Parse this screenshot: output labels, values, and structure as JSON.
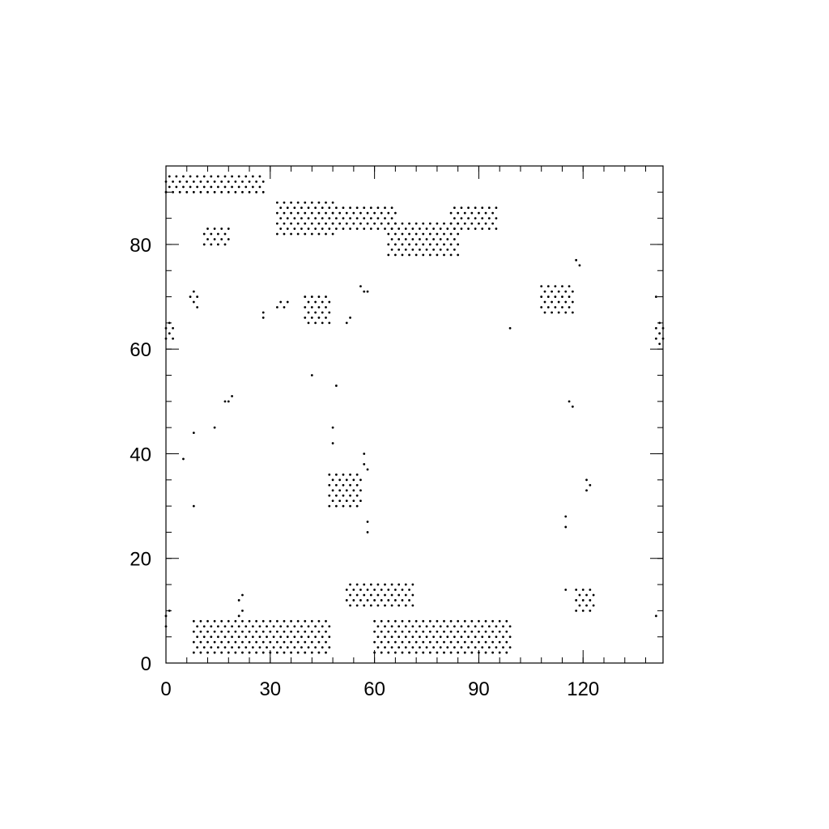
{
  "chart_data": {
    "type": "scatter",
    "title": "",
    "xlabel": "",
    "ylabel": "",
    "xlim": [
      0,
      143
    ],
    "ylim": [
      0,
      95
    ],
    "x_ticks": [
      0,
      30,
      60,
      90,
      120
    ],
    "y_ticks": [
      0,
      20,
      40,
      60,
      80
    ],
    "x_minor_step": 6,
    "y_minor_step": 5,
    "grid": false,
    "marker_color": "#000000",
    "clusters": [
      {
        "x": [
          0,
          28
        ],
        "y": [
          90,
          93
        ]
      },
      {
        "x": [
          32,
          48
        ],
        "y": [
          82,
          88
        ]
      },
      {
        "x": [
          48,
          66
        ],
        "y": [
          83,
          87
        ]
      },
      {
        "x": [
          64,
          84
        ],
        "y": [
          78,
          84
        ]
      },
      {
        "x": [
          82,
          95
        ],
        "y": [
          83,
          87
        ]
      },
      {
        "x": [
          11,
          18
        ],
        "y": [
          80,
          83
        ]
      },
      {
        "x": [
          40,
          47
        ],
        "y": [
          65,
          70
        ]
      },
      {
        "x": [
          108,
          117
        ],
        "y": [
          67,
          72
        ]
      },
      {
        "x": [
          47,
          56
        ],
        "y": [
          30,
          36
        ]
      },
      {
        "x": [
          52,
          71
        ],
        "y": [
          11,
          15
        ]
      },
      {
        "x": [
          8,
          47
        ],
        "y": [
          2,
          8
        ]
      },
      {
        "x": [
          60,
          99
        ],
        "y": [
          2,
          8
        ]
      },
      {
        "x": [
          118,
          123
        ],
        "y": [
          10,
          14
        ]
      },
      {
        "x": [
          0,
          2
        ],
        "y": [
          62,
          65
        ]
      },
      {
        "x": [
          141,
          143
        ],
        "y": [
          61,
          65
        ]
      }
    ],
    "points": [
      [
        7,
        70
      ],
      [
        8,
        71
      ],
      [
        8,
        69
      ],
      [
        9,
        68
      ],
      [
        9,
        70
      ],
      [
        28,
        67
      ],
      [
        28,
        66
      ],
      [
        32,
        68
      ],
      [
        33,
        69
      ],
      [
        34,
        68
      ],
      [
        35,
        69
      ],
      [
        52,
        65
      ],
      [
        53,
        66
      ],
      [
        56,
        72
      ],
      [
        57,
        71
      ],
      [
        58,
        71
      ],
      [
        118,
        77
      ],
      [
        119,
        76
      ],
      [
        99,
        64
      ],
      [
        141,
        70
      ],
      [
        42,
        55
      ],
      [
        49,
        53
      ],
      [
        19,
        51
      ],
      [
        18,
        50
      ],
      [
        17,
        50
      ],
      [
        116,
        50
      ],
      [
        117,
        49
      ],
      [
        48,
        45
      ],
      [
        48,
        42
      ],
      [
        14,
        45
      ],
      [
        8,
        44
      ],
      [
        5,
        39
      ],
      [
        57,
        40
      ],
      [
        57,
        38
      ],
      [
        58,
        37
      ],
      [
        121,
        35
      ],
      [
        122,
        34
      ],
      [
        121,
        33
      ],
      [
        8,
        30
      ],
      [
        115,
        28
      ],
      [
        115,
        26
      ],
      [
        58,
        27
      ],
      [
        58,
        25
      ],
      [
        115,
        14
      ],
      [
        21,
        12
      ],
      [
        22,
        13
      ],
      [
        22,
        10
      ],
      [
        21,
        9
      ],
      [
        0,
        9
      ],
      [
        1,
        10
      ],
      [
        0,
        7
      ],
      [
        141,
        9
      ]
    ]
  }
}
